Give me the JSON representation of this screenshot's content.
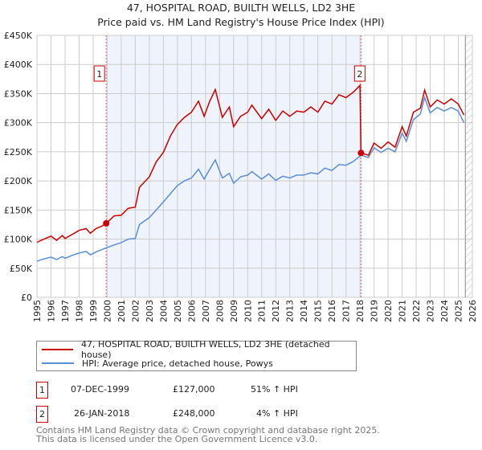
{
  "title": "47, HOSPITAL ROAD, BUILTH WELLS, LD2 3HE",
  "subtitle": "Price paid vs. HM Land Registry's House Price Index (HPI)",
  "colors": {
    "property": "#cc0000",
    "hpi": "#5b8fd4",
    "shade": "#eef3fc"
  },
  "chart_data": {
    "type": "line",
    "xlim": [
      1995,
      2026
    ],
    "ylim": [
      0,
      450000
    ],
    "grid": true,
    "y_ticks": [
      {
        "v": 0,
        "label": "£0"
      },
      {
        "v": 50000,
        "label": "£50K"
      },
      {
        "v": 100000,
        "label": "£100K"
      },
      {
        "v": 150000,
        "label": "£150K"
      },
      {
        "v": 200000,
        "label": "£200K"
      },
      {
        "v": 250000,
        "label": "£250K"
      },
      {
        "v": 300000,
        "label": "£300K"
      },
      {
        "v": 350000,
        "label": "£350K"
      },
      {
        "v": 400000,
        "label": "£400K"
      },
      {
        "v": 450000,
        "label": "£450K"
      }
    ],
    "x_ticks": [
      "1995",
      "1996",
      "1997",
      "1998",
      "1999",
      "2000",
      "2001",
      "2002",
      "2003",
      "2004",
      "2005",
      "2006",
      "2007",
      "2008",
      "2009",
      "2010",
      "2011",
      "2012",
      "2013",
      "2014",
      "2015",
      "2016",
      "2017",
      "2018",
      "2019",
      "2020",
      "2021",
      "2022",
      "2023",
      "2024",
      "2025",
      "2026"
    ],
    "shaded_range": [
      1999.93,
      2018.07
    ],
    "future_from": 2025.5,
    "series": [
      {
        "name": "47, HOSPITAL ROAD, BUILTH WELLS, LD2 3HE (detached house)",
        "points": [
          [
            1995,
            94500
          ],
          [
            1995.5,
            100000
          ],
          [
            1996,
            105000
          ],
          [
            1996.4,
            98000
          ],
          [
            1996.8,
            106000
          ],
          [
            1997,
            101000
          ],
          [
            1997.5,
            108000
          ],
          [
            1998,
            115000
          ],
          [
            1998.5,
            118000
          ],
          [
            1998.8,
            110000
          ],
          [
            1999.2,
            118000
          ],
          [
            1999.6,
            122000
          ],
          [
            1999.93,
            127000
          ],
          [
            2000.5,
            140000
          ],
          [
            2001,
            141000
          ],
          [
            2001.5,
            153000
          ],
          [
            2002,
            155000
          ],
          [
            2002.3,
            189000
          ],
          [
            2003,
            207000
          ],
          [
            2003.5,
            233000
          ],
          [
            2004,
            249000
          ],
          [
            2004.5,
            277000
          ],
          [
            2005,
            297000
          ],
          [
            2005.5,
            309000
          ],
          [
            2006,
            318000
          ],
          [
            2006.5,
            337000
          ],
          [
            2006.9,
            311000
          ],
          [
            2007.3,
            337000
          ],
          [
            2007.7,
            357000
          ],
          [
            2008.2,
            309000
          ],
          [
            2008.7,
            327000
          ],
          [
            2009,
            293000
          ],
          [
            2009.5,
            311000
          ],
          [
            2010,
            318000
          ],
          [
            2010.3,
            330000
          ],
          [
            2011,
            307000
          ],
          [
            2011.5,
            323000
          ],
          [
            2012,
            304000
          ],
          [
            2012.5,
            320000
          ],
          [
            2013,
            311000
          ],
          [
            2013.5,
            320000
          ],
          [
            2014,
            318000
          ],
          [
            2014.5,
            327000
          ],
          [
            2015,
            318000
          ],
          [
            2015.5,
            337000
          ],
          [
            2016,
            332000
          ],
          [
            2016.5,
            348000
          ],
          [
            2017,
            343000
          ],
          [
            2017.5,
            352000
          ],
          [
            2018,
            364000
          ],
          [
            2018.07,
            248000
          ],
          [
            2018.6,
            244000
          ],
          [
            2019,
            265000
          ],
          [
            2019.5,
            256000
          ],
          [
            2020,
            267000
          ],
          [
            2020.5,
            258000
          ],
          [
            2021,
            293000
          ],
          [
            2021.3,
            277000
          ],
          [
            2021.8,
            318000
          ],
          [
            2022.3,
            325000
          ],
          [
            2022.6,
            356000
          ],
          [
            2023,
            327000
          ],
          [
            2023.5,
            339000
          ],
          [
            2024,
            332000
          ],
          [
            2024.5,
            341000
          ],
          [
            2025,
            332000
          ],
          [
            2025.4,
            313000
          ]
        ]
      },
      {
        "name": "HPI: Average price, detached house, Powys",
        "points": [
          [
            1995,
            62000
          ],
          [
            1995.5,
            66000
          ],
          [
            1996,
            69000
          ],
          [
            1996.4,
            65000
          ],
          [
            1996.8,
            70000
          ],
          [
            1997,
            67000
          ],
          [
            1997.5,
            72000
          ],
          [
            1998,
            76000
          ],
          [
            1998.5,
            79000
          ],
          [
            1998.8,
            73000
          ],
          [
            1999.3,
            79000
          ],
          [
            1999.93,
            85000
          ],
          [
            2000.5,
            90000
          ],
          [
            2001,
            94000
          ],
          [
            2001.5,
            100000
          ],
          [
            2002,
            101000
          ],
          [
            2002.3,
            125000
          ],
          [
            2003,
            137000
          ],
          [
            2003.5,
            150000
          ],
          [
            2004,
            164000
          ],
          [
            2004.5,
            178000
          ],
          [
            2005,
            192000
          ],
          [
            2005.5,
            200000
          ],
          [
            2006,
            205000
          ],
          [
            2006.5,
            220000
          ],
          [
            2006.9,
            203000
          ],
          [
            2007.3,
            220000
          ],
          [
            2007.7,
            236000
          ],
          [
            2008.2,
            205000
          ],
          [
            2008.7,
            213000
          ],
          [
            2009,
            196000
          ],
          [
            2009.5,
            207000
          ],
          [
            2010,
            210000
          ],
          [
            2010.3,
            216000
          ],
          [
            2011,
            203000
          ],
          [
            2011.5,
            212000
          ],
          [
            2012,
            201000
          ],
          [
            2012.5,
            208000
          ],
          [
            2013,
            205000
          ],
          [
            2013.5,
            210000
          ],
          [
            2014,
            210000
          ],
          [
            2014.5,
            214000
          ],
          [
            2015,
            212000
          ],
          [
            2015.5,
            222000
          ],
          [
            2016,
            218000
          ],
          [
            2016.5,
            228000
          ],
          [
            2017,
            227000
          ],
          [
            2017.5,
            233000
          ],
          [
            2018.07,
            244000
          ],
          [
            2018.6,
            240000
          ],
          [
            2019,
            257000
          ],
          [
            2019.5,
            249000
          ],
          [
            2020,
            256000
          ],
          [
            2020.5,
            250000
          ],
          [
            2021,
            282000
          ],
          [
            2021.3,
            268000
          ],
          [
            2021.8,
            305000
          ],
          [
            2022.3,
            315000
          ],
          [
            2022.6,
            343000
          ],
          [
            2023,
            317000
          ],
          [
            2023.5,
            326000
          ],
          [
            2024,
            320000
          ],
          [
            2024.5,
            326000
          ],
          [
            2025,
            320000
          ],
          [
            2025.4,
            300000
          ]
        ]
      }
    ],
    "markers": [
      {
        "label": "1",
        "x": 1999.93,
        "y": 127000
      },
      {
        "label": "2",
        "x": 2018.07,
        "y": 248000
      }
    ]
  },
  "legend": {
    "property": "47, HOSPITAL ROAD, BUILTH WELLS, LD2 3HE (detached house)",
    "hpi": "HPI: Average price, detached house, Powys"
  },
  "transactions": [
    {
      "num": "1",
      "date": "07-DEC-1999",
      "price": "£127,000",
      "hpi": "51% ↑ HPI"
    },
    {
      "num": "2",
      "date": "26-JAN-2018",
      "price": "£248,000",
      "hpi": "4% ↑ HPI"
    }
  ],
  "footer": {
    "line1": "Contains HM Land Registry data © Crown copyright and database right 2025.",
    "line2": "This data is licensed under the Open Government Licence v3.0."
  }
}
